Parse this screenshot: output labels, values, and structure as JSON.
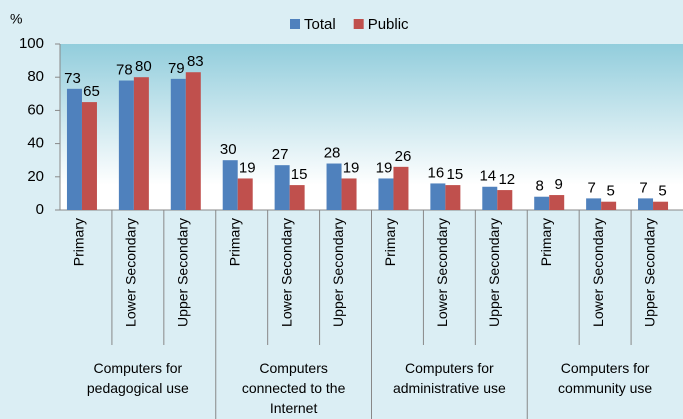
{
  "chart_data": {
    "type": "bar",
    "y_label": "%",
    "categories": [
      "Primary",
      "Lower Secondary",
      "Upper Secondary",
      "Primary",
      "Lower Secondary",
      "Upper Secondary",
      "Primary",
      "Lower Secondary",
      "Upper Secondary",
      "Primary",
      "Lower Secondary",
      "Upper Secondary"
    ],
    "category_groups": [
      "Computers for pedagogical use",
      "Computers connected to the Internet",
      "Computers for administrative use",
      "Computers for community use"
    ],
    "series": [
      {
        "name": "Total",
        "color": "#4f81bd",
        "values": [
          73,
          78,
          79,
          30,
          27,
          28,
          19,
          16,
          14,
          8,
          7,
          7
        ]
      },
      {
        "name": "Public",
        "color": "#c0504d",
        "values": [
          65,
          80,
          83,
          19,
          15,
          19,
          26,
          15,
          12,
          9,
          5,
          5
        ]
      }
    ],
    "ylim": [
      0,
      100
    ],
    "yticks": [
      0,
      20,
      40,
      60,
      80,
      100
    ],
    "legend": "top"
  }
}
